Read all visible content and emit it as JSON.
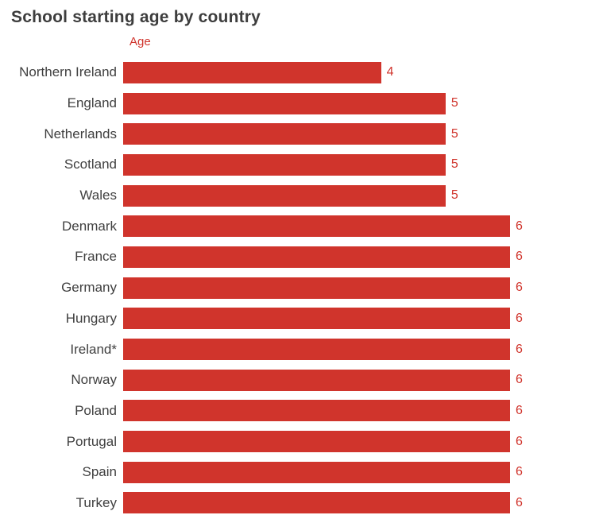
{
  "title": "School starting age by country",
  "axis_label": "Age",
  "colors": {
    "bar": "#d0342c",
    "value_label": "#d0342c",
    "title": "#3d3d3d",
    "category_label": "#404040",
    "background": "#ffffff"
  },
  "chart_data": {
    "type": "bar",
    "orientation": "horizontal",
    "title": "School starting age by country",
    "xlabel": "Age",
    "ylabel": "",
    "xlim": [
      0,
      6
    ],
    "grid": false,
    "legend": false,
    "categories": [
      "Northern Ireland",
      "England",
      "Netherlands",
      "Scotland",
      "Wales",
      "Denmark",
      "France",
      "Germany",
      "Hungary",
      "Ireland*",
      "Norway",
      "Poland",
      "Portugal",
      "Spain",
      "Turkey"
    ],
    "values": [
      4,
      5,
      5,
      5,
      5,
      6,
      6,
      6,
      6,
      6,
      6,
      6,
      6,
      6,
      6
    ],
    "value_labels": [
      "4",
      "5",
      "5",
      "5",
      "5",
      "6",
      "6",
      "6",
      "6",
      "6",
      "6",
      "6",
      "6",
      "6",
      "6"
    ]
  }
}
